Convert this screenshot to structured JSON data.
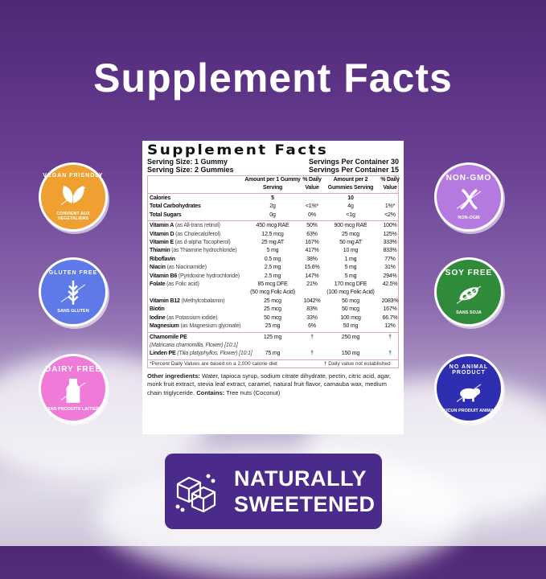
{
  "headline": "Supplement Facts",
  "label": {
    "title": "Supplement Facts",
    "serving1": "Serving Size: 1 Gummy",
    "servings1": "Servings Per Container 30",
    "serving2": "Serving Size: 2 Gummies",
    "servings2": "Servings Per Container 15",
    "headers": [
      "",
      "Amount per 1 Gummy Serving",
      "% Daily Value",
      "Amount per 2 Gummies Serving",
      "% Daily Value"
    ],
    "macros": [
      {
        "name": "Calories",
        "sub": "",
        "a1": "5",
        "d1": "",
        "a2": "10",
        "d2": ""
      },
      {
        "name": "Total Carbohydrates",
        "sub": "",
        "a1": "2g",
        "d1": "<1%*",
        "a2": "4g",
        "d2": "1%*"
      },
      {
        "name": "Total Sugars",
        "sub": "",
        "a1": "0g",
        "d1": "0%",
        "a2": "<1g",
        "d2": "<2%"
      }
    ],
    "nutrients": [
      {
        "name": "Vitamin A",
        "sub": "(as All-trans retinol)",
        "a1": "450 mcg RAE",
        "d1": "50%",
        "a2": "900 mcg RAE",
        "d2": "100%"
      },
      {
        "name": "Vitamin D",
        "sub": "(as Cholecalciferol)",
        "a1": "12.5 mcg",
        "d1": "63%",
        "a2": "25 mcg",
        "d2": "125%"
      },
      {
        "name": "Vitamin E",
        "sub": "(as d-alpha Tocopherol)",
        "a1": "25 mg AT",
        "d1": "167%",
        "a2": "50 mg AT",
        "d2": "333%"
      },
      {
        "name": "Thiamin",
        "sub": "(as Thiamine hydrochloride)",
        "a1": "5 mg",
        "d1": "417%",
        "a2": "10 mg",
        "d2": "833%"
      },
      {
        "name": "Riboflavin",
        "sub": "",
        "a1": "0.5 mg",
        "d1": "38%",
        "a2": "1 mg",
        "d2": "77%"
      },
      {
        "name": "Niacin",
        "sub": "(as Niacinamide)",
        "a1": "2.5 mg",
        "d1": "15.6%",
        "a2": "5 mg",
        "d2": "31%"
      },
      {
        "name": "Vitamin B6",
        "sub": "(Pyridoxine hydrochloride)",
        "a1": "2.5 mg",
        "d1": "147%",
        "a2": "5 mg",
        "d2": "294%"
      },
      {
        "name": "Folate",
        "sub": "(as Folic acid)",
        "a1": "85 mcg DFE",
        "d1": "21%",
        "a2": "170 mcg DFE",
        "d2": "42.5%"
      },
      {
        "name": "",
        "sub": "",
        "a1": "(50 mcg Folic Acid)",
        "d1": "",
        "a2": "(100 mcg Folic Acid)",
        "d2": ""
      },
      {
        "name": "Vitamin B12",
        "sub": "(Methylcobalamin)",
        "a1": "25 mcg",
        "d1": "1042%",
        "a2": "50 mcg",
        "d2": "2083%"
      },
      {
        "name": "Biotin",
        "sub": "",
        "a1": "25 mcg",
        "d1": "83%",
        "a2": "50 mcg",
        "d2": "167%"
      },
      {
        "name": "Iodine",
        "sub": "(as Potassium iodide)",
        "a1": "50 mcg",
        "d1": "33%",
        "a2": "100 mcg",
        "d2": "66.7%"
      },
      {
        "name": "Magnesium",
        "sub": "(as Magnesium glycinate)",
        "a1": "25 mg",
        "d1": "6%",
        "a2": "50 mg",
        "d2": "12%"
      }
    ],
    "botanicals": [
      {
        "name": "Chamomile PE",
        "sub": "",
        "a1": "125 mg",
        "d1": "†",
        "a2": "250 mg",
        "d2": "†"
      },
      {
        "name": "",
        "sub": "(Matricaria chamomilla, Flower) [10:1]",
        "a1": "",
        "d1": "",
        "a2": "",
        "d2": ""
      },
      {
        "name": "Linden PE",
        "sub": "(Tilia platyphyllos, Flower) [10:1]",
        "a1": "75 mg",
        "d1": "†",
        "a2": "150 mg",
        "d2": "†"
      }
    ],
    "footnote1": "*Percent Daily Values are based on a 2,000 calorie diet",
    "footnote2": "† Daily value not established",
    "other_label": "Other ingredients:",
    "other_text": " Water, tapioca syrup, sodium citrate dihydrate, pectin, citric acid, agar, monk fruit extract, stevia leaf extract, caramel, natural fruit flavor, carnauba wax, medium chain triglyceride. ",
    "contains_label": "Contains:",
    "contains_text": " Tree nuts (Coconut)"
  },
  "badges": [
    {
      "title": "VEGAN FRIENDLY",
      "sub": "CONVIENT AUX VEGETALIENS",
      "icon": "leaf-icon",
      "color": "#f0a030"
    },
    {
      "title": "GLUTEN FREE",
      "sub": "SANS GLUTEN",
      "icon": "wheat-icon",
      "color": "#5d7ae8"
    },
    {
      "title": "DAIRY FREE",
      "sub": "SANS PRODUITS LAITIERS",
      "icon": "milk-icon",
      "color": "#f07ad8"
    },
    {
      "title": "NON-GMO",
      "sub": "NON-OGM",
      "icon": "dna-icon",
      "color": "#b57ae0"
    },
    {
      "title": "SOY FREE",
      "sub": "SANS SOJA",
      "icon": "soybean-icon",
      "color": "#2f8a3a"
    },
    {
      "title": "NO ANIMAL PRODUCT",
      "sub": "AUCUN PRODUIT ANIMAL",
      "icon": "pig-icon",
      "color": "#2e2fb0"
    }
  ],
  "sweetened": {
    "line1": "NATURALLY",
    "line2": "SWEETENED",
    "icon": "sugar-cubes-icon"
  }
}
